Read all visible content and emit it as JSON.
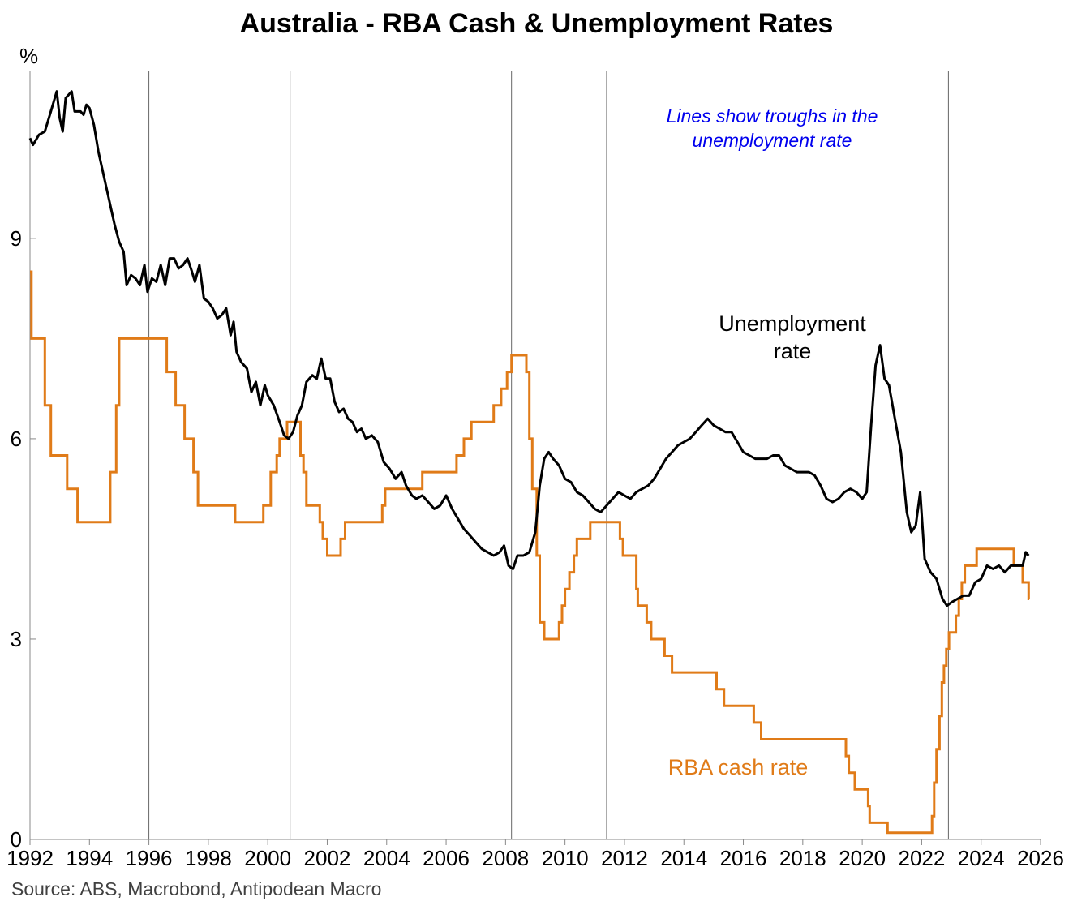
{
  "title": "Australia - RBA Cash & Unemployment Rates",
  "source": "Source: ABS, Macrobond, Antipodean Macro",
  "chart_data": {
    "type": "line",
    "unit": "%",
    "xlim": [
      1992,
      2026
    ],
    "ylim": [
      0,
      11.5
    ],
    "x_ticks": [
      "1992",
      "1994",
      "1996",
      "1998",
      "2000",
      "2002",
      "2004",
      "2006",
      "2008",
      "2010",
      "2012",
      "2014",
      "2016",
      "2018",
      "2020",
      "2022",
      "2024",
      "2026"
    ],
    "y_ticks": [
      "0",
      "3",
      "6",
      "9"
    ],
    "trough_lines": [
      1996.0,
      2000.75,
      2008.2,
      2011.4,
      2022.9
    ],
    "annotation": [
      "Lines show troughs in the",
      "unemployment rate"
    ],
    "series": [
      {
        "name": "Unemployment rate",
        "label_lines": [
          "Unemployment",
          "rate"
        ],
        "color": "#000000",
        "points": [
          [
            1992.0,
            10.5
          ],
          [
            1992.1,
            10.4
          ],
          [
            1992.3,
            10.55
          ],
          [
            1992.5,
            10.6
          ],
          [
            1992.7,
            10.9
          ],
          [
            1992.9,
            11.2
          ],
          [
            1993.0,
            10.8
          ],
          [
            1993.1,
            10.6
          ],
          [
            1993.2,
            11.1
          ],
          [
            1993.4,
            11.2
          ],
          [
            1993.5,
            10.9
          ],
          [
            1993.7,
            10.9
          ],
          [
            1993.8,
            10.85
          ],
          [
            1993.9,
            11.0
          ],
          [
            1994.0,
            10.95
          ],
          [
            1994.15,
            10.7
          ],
          [
            1994.3,
            10.3
          ],
          [
            1994.5,
            9.9
          ],
          [
            1994.7,
            9.5
          ],
          [
            1994.85,
            9.2
          ],
          [
            1995.0,
            8.95
          ],
          [
            1995.15,
            8.8
          ],
          [
            1995.25,
            8.3
          ],
          [
            1995.4,
            8.45
          ],
          [
            1995.55,
            8.4
          ],
          [
            1995.7,
            8.3
          ],
          [
            1995.85,
            8.6
          ],
          [
            1995.95,
            8.2
          ],
          [
            1996.1,
            8.4
          ],
          [
            1996.25,
            8.35
          ],
          [
            1996.4,
            8.6
          ],
          [
            1996.55,
            8.3
          ],
          [
            1996.7,
            8.7
          ],
          [
            1996.85,
            8.7
          ],
          [
            1997.0,
            8.55
          ],
          [
            1997.15,
            8.6
          ],
          [
            1997.3,
            8.7
          ],
          [
            1997.45,
            8.5
          ],
          [
            1997.55,
            8.35
          ],
          [
            1997.7,
            8.6
          ],
          [
            1997.85,
            8.1
          ],
          [
            1998.0,
            8.05
          ],
          [
            1998.15,
            7.95
          ],
          [
            1998.3,
            7.8
          ],
          [
            1998.45,
            7.85
          ],
          [
            1998.6,
            7.95
          ],
          [
            1998.75,
            7.55
          ],
          [
            1998.85,
            7.75
          ],
          [
            1998.95,
            7.3
          ],
          [
            1999.1,
            7.15
          ],
          [
            1999.3,
            7.05
          ],
          [
            1999.45,
            6.7
          ],
          [
            1999.6,
            6.85
          ],
          [
            1999.75,
            6.5
          ],
          [
            1999.9,
            6.8
          ],
          [
            2000.0,
            6.65
          ],
          [
            2000.2,
            6.5
          ],
          [
            2000.4,
            6.25
          ],
          [
            2000.55,
            6.05
          ],
          [
            2000.7,
            6.0
          ],
          [
            2000.85,
            6.1
          ],
          [
            2001.0,
            6.35
          ],
          [
            2001.15,
            6.5
          ],
          [
            2001.3,
            6.85
          ],
          [
            2001.5,
            6.95
          ],
          [
            2001.65,
            6.9
          ],
          [
            2001.8,
            7.2
          ],
          [
            2001.95,
            6.9
          ],
          [
            2002.1,
            6.9
          ],
          [
            2002.25,
            6.55
          ],
          [
            2002.4,
            6.4
          ],
          [
            2002.55,
            6.45
          ],
          [
            2002.7,
            6.3
          ],
          [
            2002.85,
            6.25
          ],
          [
            2003.0,
            6.1
          ],
          [
            2003.15,
            6.15
          ],
          [
            2003.3,
            6.0
          ],
          [
            2003.5,
            6.05
          ],
          [
            2003.7,
            5.95
          ],
          [
            2003.9,
            5.65
          ],
          [
            2004.1,
            5.55
          ],
          [
            2004.3,
            5.4
          ],
          [
            2004.5,
            5.5
          ],
          [
            2004.65,
            5.3
          ],
          [
            2004.85,
            5.15
          ],
          [
            2005.0,
            5.1
          ],
          [
            2005.2,
            5.15
          ],
          [
            2005.4,
            5.05
          ],
          [
            2005.6,
            4.95
          ],
          [
            2005.8,
            5.0
          ],
          [
            2006.0,
            5.15
          ],
          [
            2006.2,
            4.95
          ],
          [
            2006.4,
            4.8
          ],
          [
            2006.6,
            4.65
          ],
          [
            2006.8,
            4.55
          ],
          [
            2007.0,
            4.45
          ],
          [
            2007.2,
            4.35
          ],
          [
            2007.4,
            4.3
          ],
          [
            2007.6,
            4.25
          ],
          [
            2007.8,
            4.3
          ],
          [
            2007.95,
            4.4
          ],
          [
            2008.1,
            4.1
          ],
          [
            2008.25,
            4.05
          ],
          [
            2008.4,
            4.25
          ],
          [
            2008.6,
            4.25
          ],
          [
            2008.8,
            4.3
          ],
          [
            2009.0,
            4.6
          ],
          [
            2009.15,
            5.3
          ],
          [
            2009.3,
            5.7
          ],
          [
            2009.45,
            5.8
          ],
          [
            2009.6,
            5.7
          ],
          [
            2009.8,
            5.6
          ],
          [
            2010.0,
            5.4
          ],
          [
            2010.2,
            5.35
          ],
          [
            2010.4,
            5.2
          ],
          [
            2010.6,
            5.15
          ],
          [
            2010.8,
            5.05
          ],
          [
            2011.0,
            4.95
          ],
          [
            2011.2,
            4.9
          ],
          [
            2011.4,
            5.0
          ],
          [
            2011.6,
            5.1
          ],
          [
            2011.8,
            5.2
          ],
          [
            2012.0,
            5.15
          ],
          [
            2012.2,
            5.1
          ],
          [
            2012.4,
            5.2
          ],
          [
            2012.6,
            5.25
          ],
          [
            2012.8,
            5.3
          ],
          [
            2013.0,
            5.4
          ],
          [
            2013.2,
            5.55
          ],
          [
            2013.4,
            5.7
          ],
          [
            2013.6,
            5.8
          ],
          [
            2013.8,
            5.9
          ],
          [
            2014.0,
            5.95
          ],
          [
            2014.2,
            6.0
          ],
          [
            2014.4,
            6.1
          ],
          [
            2014.6,
            6.2
          ],
          [
            2014.8,
            6.3
          ],
          [
            2015.0,
            6.2
          ],
          [
            2015.2,
            6.15
          ],
          [
            2015.4,
            6.1
          ],
          [
            2015.6,
            6.1
          ],
          [
            2015.8,
            5.95
          ],
          [
            2016.0,
            5.8
          ],
          [
            2016.2,
            5.75
          ],
          [
            2016.4,
            5.7
          ],
          [
            2016.6,
            5.7
          ],
          [
            2016.8,
            5.7
          ],
          [
            2017.0,
            5.75
          ],
          [
            2017.2,
            5.75
          ],
          [
            2017.4,
            5.6
          ],
          [
            2017.6,
            5.55
          ],
          [
            2017.8,
            5.5
          ],
          [
            2018.0,
            5.5
          ],
          [
            2018.2,
            5.5
          ],
          [
            2018.4,
            5.45
          ],
          [
            2018.6,
            5.3
          ],
          [
            2018.8,
            5.1
          ],
          [
            2019.0,
            5.05
          ],
          [
            2019.2,
            5.1
          ],
          [
            2019.4,
            5.2
          ],
          [
            2019.6,
            5.25
          ],
          [
            2019.8,
            5.2
          ],
          [
            2020.0,
            5.1
          ],
          [
            2020.15,
            5.2
          ],
          [
            2020.3,
            6.2
          ],
          [
            2020.45,
            7.1
          ],
          [
            2020.6,
            7.4
          ],
          [
            2020.75,
            6.9
          ],
          [
            2020.9,
            6.8
          ],
          [
            2021.1,
            6.3
          ],
          [
            2021.3,
            5.8
          ],
          [
            2021.5,
            4.9
          ],
          [
            2021.65,
            4.6
          ],
          [
            2021.8,
            4.7
          ],
          [
            2021.95,
            5.2
          ],
          [
            2022.1,
            4.2
          ],
          [
            2022.3,
            4.0
          ],
          [
            2022.5,
            3.9
          ],
          [
            2022.7,
            3.6
          ],
          [
            2022.85,
            3.5
          ],
          [
            2023.0,
            3.55
          ],
          [
            2023.2,
            3.6
          ],
          [
            2023.4,
            3.65
          ],
          [
            2023.6,
            3.65
          ],
          [
            2023.8,
            3.85
          ],
          [
            2024.0,
            3.9
          ],
          [
            2024.2,
            4.1
          ],
          [
            2024.4,
            4.05
          ],
          [
            2024.6,
            4.1
          ],
          [
            2024.8,
            4.0
          ],
          [
            2025.0,
            4.1
          ],
          [
            2025.2,
            4.1
          ],
          [
            2025.4,
            4.1
          ],
          [
            2025.5,
            4.3
          ],
          [
            2025.6,
            4.25
          ]
        ]
      },
      {
        "name": "RBA cash rate",
        "label_lines": [
          "RBA cash rate"
        ],
        "color": "#e07b18",
        "steps": [
          [
            1992.0,
            8.5
          ],
          [
            1992.05,
            7.5
          ],
          [
            1992.5,
            6.5
          ],
          [
            1992.7,
            5.75
          ],
          [
            1993.25,
            5.25
          ],
          [
            1993.6,
            4.75
          ],
          [
            1994.7,
            5.5
          ],
          [
            1994.9,
            6.5
          ],
          [
            1995.0,
            7.5
          ],
          [
            1996.6,
            7.0
          ],
          [
            1996.9,
            6.5
          ],
          [
            1997.2,
            6.0
          ],
          [
            1997.5,
            5.5
          ],
          [
            1997.65,
            5.0
          ],
          [
            1998.9,
            4.75
          ],
          [
            1999.85,
            5.0
          ],
          [
            2000.1,
            5.5
          ],
          [
            2000.3,
            5.75
          ],
          [
            2000.4,
            6.0
          ],
          [
            2000.65,
            6.25
          ],
          [
            2001.1,
            5.75
          ],
          [
            2001.2,
            5.5
          ],
          [
            2001.3,
            5.0
          ],
          [
            2001.75,
            4.75
          ],
          [
            2001.85,
            4.5
          ],
          [
            2002.0,
            4.25
          ],
          [
            2002.45,
            4.5
          ],
          [
            2002.6,
            4.75
          ],
          [
            2003.85,
            5.0
          ],
          [
            2003.95,
            5.25
          ],
          [
            2005.2,
            5.5
          ],
          [
            2006.35,
            5.75
          ],
          [
            2006.6,
            6.0
          ],
          [
            2006.85,
            6.25
          ],
          [
            2007.6,
            6.5
          ],
          [
            2007.85,
            6.75
          ],
          [
            2008.05,
            7.0
          ],
          [
            2008.2,
            7.25
          ],
          [
            2008.7,
            7.0
          ],
          [
            2008.8,
            6.0
          ],
          [
            2008.9,
            5.25
          ],
          [
            2009.05,
            4.25
          ],
          [
            2009.15,
            3.25
          ],
          [
            2009.3,
            3.0
          ],
          [
            2009.8,
            3.25
          ],
          [
            2009.9,
            3.5
          ],
          [
            2010.0,
            3.75
          ],
          [
            2010.15,
            4.0
          ],
          [
            2010.3,
            4.25
          ],
          [
            2010.4,
            4.5
          ],
          [
            2010.85,
            4.75
          ],
          [
            2011.85,
            4.5
          ],
          [
            2011.95,
            4.25
          ],
          [
            2012.4,
            3.75
          ],
          [
            2012.45,
            3.5
          ],
          [
            2012.75,
            3.25
          ],
          [
            2012.9,
            3.0
          ],
          [
            2013.35,
            2.75
          ],
          [
            2013.6,
            2.5
          ],
          [
            2015.1,
            2.25
          ],
          [
            2015.35,
            2.0
          ],
          [
            2016.35,
            1.75
          ],
          [
            2016.6,
            1.5
          ],
          [
            2019.45,
            1.25
          ],
          [
            2019.55,
            1.0
          ],
          [
            2019.75,
            0.75
          ],
          [
            2020.2,
            0.5
          ],
          [
            2020.25,
            0.25
          ],
          [
            2020.85,
            0.1
          ],
          [
            2022.35,
            0.35
          ],
          [
            2022.42,
            0.85
          ],
          [
            2022.5,
            1.35
          ],
          [
            2022.6,
            1.85
          ],
          [
            2022.68,
            2.35
          ],
          [
            2022.75,
            2.6
          ],
          [
            2022.83,
            2.85
          ],
          [
            2022.92,
            3.1
          ],
          [
            2023.15,
            3.35
          ],
          [
            2023.25,
            3.6
          ],
          [
            2023.35,
            3.85
          ],
          [
            2023.45,
            4.1
          ],
          [
            2023.85,
            4.35
          ],
          [
            2025.1,
            4.1
          ],
          [
            2025.4,
            3.85
          ],
          [
            2025.6,
            3.6
          ],
          [
            2025.62,
            3.6
          ]
        ]
      }
    ]
  }
}
